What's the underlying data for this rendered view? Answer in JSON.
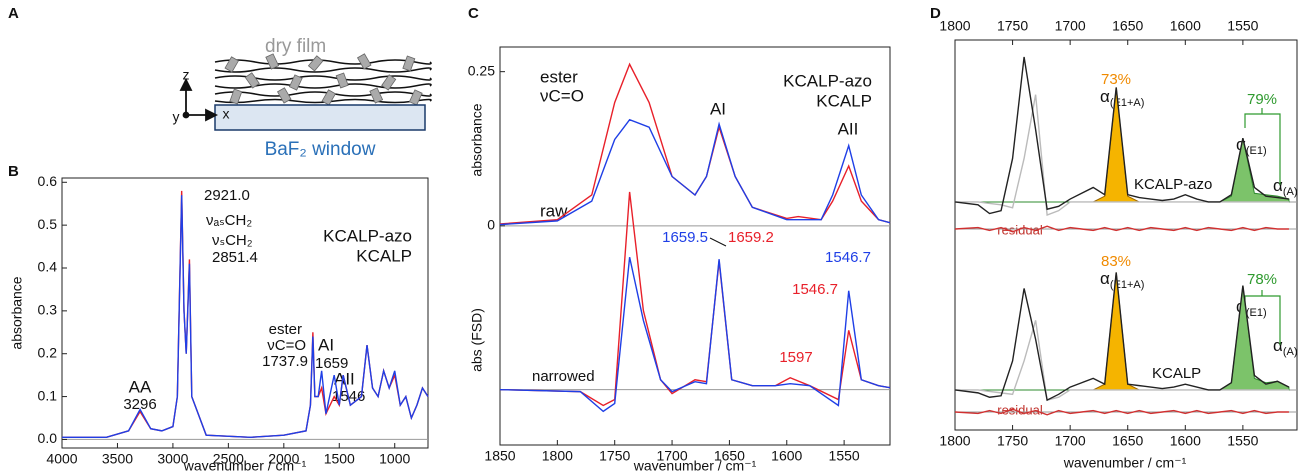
{
  "panel_a": {
    "label": "A",
    "film": "dry film",
    "window": "BaF₂ window",
    "axes": [
      "z",
      "y",
      "x"
    ]
  },
  "chart_data": [
    {
      "type": "line",
      "panel": "B",
      "xlabel": "wavenumber / cm⁻¹",
      "ylabel": "absorbance",
      "x": [
        4000,
        3600,
        3400,
        3296,
        3200,
        3100,
        3000,
        2960,
        2921,
        2900,
        2880,
        2851,
        2830,
        2700,
        2300,
        2000,
        1800,
        1760,
        1738,
        1720,
        1690,
        1659,
        1620,
        1546,
        1500,
        1465,
        1400,
        1300,
        1250,
        1200,
        1150,
        1100,
        1050,
        1000,
        950,
        900,
        850,
        800,
        750,
        700
      ],
      "series": [
        {
          "name": "KCALP-azo",
          "color": "#e8202a",
          "values": [
            0.005,
            0.005,
            0.02,
            0.065,
            0.025,
            0.02,
            0.03,
            0.1,
            0.58,
            0.3,
            0.2,
            0.42,
            0.1,
            0.01,
            0.005,
            0.01,
            0.02,
            0.08,
            0.25,
            0.1,
            0.1,
            0.12,
            0.06,
            0.1,
            0.08,
            0.15,
            0.08,
            0.1,
            0.22,
            0.12,
            0.1,
            0.16,
            0.12,
            0.15,
            0.08,
            0.1,
            0.05,
            0.08,
            0.12,
            0.1
          ]
        },
        {
          "name": "KCALP",
          "color": "#1f3fe6",
          "values": [
            0.005,
            0.005,
            0.02,
            0.07,
            0.025,
            0.02,
            0.03,
            0.1,
            0.57,
            0.3,
            0.2,
            0.41,
            0.1,
            0.01,
            0.005,
            0.01,
            0.02,
            0.08,
            0.24,
            0.1,
            0.1,
            0.16,
            0.06,
            0.15,
            0.08,
            0.15,
            0.08,
            0.1,
            0.22,
            0.12,
            0.1,
            0.16,
            0.12,
            0.16,
            0.08,
            0.1,
            0.05,
            0.08,
            0.12,
            0.1
          ]
        }
      ],
      "xlim": [
        4000,
        700
      ],
      "ylim": [
        -0.02,
        0.61
      ],
      "xticks": [
        4000,
        3500,
        3000,
        2500,
        2000,
        1500,
        1000
      ],
      "yticks": [
        {
          "value": 0,
          "label": "0.0"
        },
        0.1,
        0.2,
        0.3,
        0.4,
        0.5,
        0.6
      ],
      "legend": "upper right",
      "zero_line": true,
      "annotations": [
        "2921.0",
        "νₐₛCH₂",
        "νₛCH₂",
        "2851.4",
        "ester",
        "νC=O",
        "1737.9",
        "AI",
        "1659",
        "AII",
        "1546",
        "AA",
        "3296"
      ]
    },
    {
      "type": "line",
      "panel": "C",
      "ylabel": "absorbance",
      "x": [
        1850,
        1800,
        1770,
        1750,
        1737,
        1720,
        1700,
        1680,
        1670,
        1659,
        1645,
        1630,
        1600,
        1590,
        1570,
        1560,
        1546,
        1535,
        1520,
        1510
      ],
      "series": [
        {
          "name": "KCALP-azo",
          "color": "#e8202a",
          "values": [
            0.003,
            0.01,
            0.05,
            0.2,
            0.262,
            0.2,
            0.08,
            0.05,
            0.08,
            0.16,
            0.08,
            0.03,
            0.012,
            0.015,
            0.01,
            0.04,
            0.097,
            0.04,
            0.01,
            0.005
          ]
        },
        {
          "name": "KCALP",
          "color": "#1f3fe6",
          "values": [
            0.002,
            0.008,
            0.04,
            0.14,
            0.172,
            0.16,
            0.08,
            0.05,
            0.08,
            0.165,
            0.08,
            0.03,
            0.01,
            0.01,
            0.01,
            0.05,
            0.13,
            0.05,
            0.01,
            0.005
          ]
        }
      ],
      "xlim": [
        1850,
        1510
      ],
      "ylim": [
        -0.023,
        0.29
      ],
      "yticks": [
        0,
        0.25
      ],
      "legend": "upper right",
      "zero_line": true,
      "annotations": [
        "ester",
        "νC=O",
        "AI",
        "AII",
        "raw"
      ]
    },
    {
      "type": "line",
      "ylabel": "abs (FSD)",
      "xlabel": "wavenumber / cm⁻¹",
      "x": [
        1850,
        1780,
        1760,
        1750,
        1737,
        1725,
        1710,
        1700,
        1680,
        1670,
        1659,
        1648,
        1630,
        1610,
        1597,
        1580,
        1555,
        1546,
        1535,
        1520,
        1510
      ],
      "series": [
        {
          "color": "#e8202a",
          "values": [
            0,
            -0.01,
            -0.08,
            -0.05,
            1.0,
            0.4,
            0.05,
            -0.02,
            0.05,
            0.04,
            0.65,
            0.05,
            0.02,
            0.02,
            0.06,
            0.02,
            -0.05,
            0.3,
            0.05,
            0.02,
            0.01
          ]
        },
        {
          "color": "#1f3fe6",
          "values": [
            0,
            -0.01,
            -0.11,
            -0.07,
            0.67,
            0.35,
            0.05,
            -0.01,
            0.04,
            0.03,
            0.66,
            0.05,
            0.02,
            0.02,
            0.03,
            0.02,
            -0.08,
            0.5,
            0.05,
            0.02,
            0.01
          ]
        }
      ],
      "xlim": [
        1850,
        1510
      ],
      "ylim": [
        -0.28,
        1.035
      ],
      "xticks": [
        1850,
        1800,
        1750,
        1700,
        1650,
        1600,
        1550
      ],
      "zero_line": true,
      "annotations": [
        "narrowed",
        "1659.5",
        "1659.2",
        "1546.7",
        "1546.7",
        "1597"
      ]
    },
    {
      "type": "line",
      "panel": "D",
      "x": [
        1800,
        1780,
        1770,
        1760,
        1750,
        1740,
        1730,
        1720,
        1710,
        1700,
        1690,
        1680,
        1670,
        1660,
        1650,
        1640,
        1630,
        1620,
        1610,
        1600,
        1590,
        1580,
        1570,
        1560,
        1550,
        1540,
        1530,
        1520,
        1510
      ],
      "series": [
        {
          "color": "#9a6400",
          "fill": "#f5b400",
          "values": [
            0,
            0,
            0,
            0,
            0,
            0,
            0,
            0,
            0,
            0,
            0,
            0,
            0.04,
            0.79,
            0.04,
            0,
            0,
            0,
            0,
            0,
            0,
            0,
            0,
            0,
            0,
            0,
            0,
            0,
            0
          ]
        },
        {
          "color": "#2e8b2e",
          "fill": "#7cc36a",
          "values": [
            0,
            0,
            0,
            0,
            0,
            0,
            0,
            0,
            0,
            0,
            0,
            0,
            0,
            0,
            0,
            0,
            0,
            0,
            0,
            0,
            0,
            0,
            0,
            0.04,
            0.44,
            0.06,
            0.05,
            0.04,
            0.02
          ]
        },
        {
          "color": "#bbbbbb",
          "values": [
            0,
            0,
            -0.01,
            -0.02,
            -0.04,
            0.3,
            0.74,
            -0.09,
            -0.06,
            0,
            0,
            0,
            0,
            0,
            0,
            0,
            0,
            0,
            0,
            0,
            0,
            0,
            0,
            0,
            0,
            0,
            0,
            0,
            0
          ]
        },
        {
          "color": "#222222",
          "values": [
            0,
            -0.02,
            -0.08,
            -0.06,
            0.3,
            1.0,
            0.5,
            -0.05,
            -0.03,
            0.02,
            0.06,
            0.1,
            0.05,
            0.79,
            0.05,
            0.03,
            0.02,
            0.01,
            0.02,
            0.05,
            0.02,
            0,
            0,
            0.05,
            0.44,
            0.1,
            0.04,
            0.03,
            0.02
          ]
        }
      ],
      "xlim": [
        1800,
        1503
      ],
      "ylim": [
        -0.09,
        1.117
      ],
      "xticks": [
        1800,
        1750,
        1700,
        1650,
        1600,
        1550
      ],
      "xaxis": "top",
      "zero_line": true,
      "annotations": [
        "73%",
        "79%",
        "KCALP-azo"
      ],
      "peak_labels": [
        {
          "symbol": "α",
          "subscript": "(E1+A)"
        },
        {
          "symbol": "α",
          "subscript": "(E1)"
        },
        {
          "symbol": "α",
          "subscript": "(A)"
        }
      ]
    },
    {
      "type": "line",
      "x": [
        1800,
        1780,
        1770,
        1760,
        1750,
        1740,
        1730,
        1720,
        1710,
        1700,
        1690,
        1680,
        1670,
        1660,
        1650,
        1640,
        1630,
        1620,
        1610,
        1600,
        1590,
        1580,
        1570,
        1560,
        1550,
        1540,
        1530,
        1520,
        1510
      ],
      "series": [
        {
          "color": "#d03030",
          "values": [
            0,
            0.01,
            -0.01,
            0.01,
            -0.02,
            0.01,
            -0.01,
            0.02,
            -0.01,
            0.01,
            0,
            -0.01,
            0.01,
            -0.01,
            0.01,
            -0.01,
            0.01,
            0,
            -0.01,
            0.01,
            -0.01,
            0.01,
            0,
            -0.01,
            0.01,
            -0.01,
            0.01,
            0,
            0
          ]
        }
      ],
      "xlim": [
        1800,
        1503
      ],
      "ylim": [
        -0.05,
        0.05
      ],
      "zero_line": true,
      "annotations": [
        "residual"
      ]
    },
    {
      "type": "line",
      "xlabel": "wavenumber / cm⁻¹",
      "x": [
        1800,
        1780,
        1770,
        1760,
        1750,
        1740,
        1730,
        1720,
        1710,
        1700,
        1690,
        1680,
        1670,
        1660,
        1650,
        1640,
        1630,
        1620,
        1610,
        1600,
        1590,
        1580,
        1570,
        1560,
        1550,
        1540,
        1530,
        1520,
        1510
      ],
      "series": [
        {
          "color": "#9a6400",
          "fill": "#f5b400",
          "values": [
            0,
            0,
            0,
            0,
            0,
            0,
            0,
            0,
            0,
            0,
            0,
            0,
            0.04,
            0.81,
            0.04,
            0,
            0,
            0,
            0,
            0,
            0,
            0,
            0,
            0,
            0,
            0,
            0,
            0,
            0
          ]
        },
        {
          "color": "#2e8b2e",
          "fill": "#7cc36a",
          "values": [
            0,
            0,
            0,
            0,
            0,
            0,
            0,
            0,
            0,
            0,
            0,
            0,
            0,
            0,
            0,
            0,
            0,
            0,
            0,
            0,
            0,
            0,
            0,
            0.05,
            0.72,
            0.08,
            0.05,
            0.06,
            0.02
          ]
        },
        {
          "color": "#bbbbbb",
          "values": [
            0,
            0,
            -0.01,
            -0.02,
            -0.03,
            0.2,
            0.48,
            -0.07,
            -0.05,
            0,
            0,
            0,
            0,
            0,
            0,
            0,
            0,
            0,
            0,
            0,
            0,
            0,
            0,
            0,
            0,
            0,
            0,
            0,
            0
          ]
        },
        {
          "color": "#222222",
          "values": [
            0,
            -0.02,
            -0.05,
            -0.04,
            0.2,
            0.7,
            0.35,
            -0.07,
            -0.03,
            0.02,
            0.05,
            0.08,
            0.04,
            0.81,
            0.04,
            0.03,
            0.02,
            0.01,
            0.02,
            0.04,
            0.02,
            0,
            0,
            0.05,
            0.72,
            0.1,
            0.04,
            0.06,
            0.02
          ]
        }
      ],
      "xlim": [
        1800,
        1503
      ],
      "ylim": [
        -0.276,
        1.034
      ],
      "xticks": [
        1800,
        1750,
        1700,
        1650,
        1600,
        1550
      ],
      "zero_line": true,
      "annotations": [
        "83%",
        "78%",
        "KCALP"
      ],
      "peak_labels": [
        {
          "symbol": "α",
          "subscript": "(E1+A)"
        },
        {
          "symbol": "α",
          "subscript": "(E1)"
        },
        {
          "symbol": "α",
          "subscript": "(A)"
        }
      ]
    },
    {
      "type": "line",
      "x": [
        1800,
        1780,
        1770,
        1760,
        1750,
        1740,
        1730,
        1720,
        1710,
        1700,
        1690,
        1680,
        1670,
        1660,
        1650,
        1640,
        1630,
        1620,
        1610,
        1600,
        1590,
        1580,
        1570,
        1560,
        1550,
        1540,
        1530,
        1520,
        1510
      ],
      "series": [
        {
          "color": "#d03030",
          "values": [
            0,
            -0.01,
            0.01,
            -0.01,
            0.02,
            -0.01,
            0.01,
            -0.02,
            0.01,
            -0.01,
            0,
            0.01,
            -0.01,
            0.01,
            -0.01,
            0.01,
            -0.01,
            0,
            0.01,
            -0.01,
            0.01,
            -0.01,
            0,
            0.01,
            -0.01,
            0.01,
            -0.01,
            0,
            0
          ]
        }
      ],
      "xlim": [
        1800,
        1503
      ],
      "ylim": [
        -0.05,
        0.05
      ],
      "zero_line": true,
      "annotations": [
        "residual"
      ]
    }
  ]
}
